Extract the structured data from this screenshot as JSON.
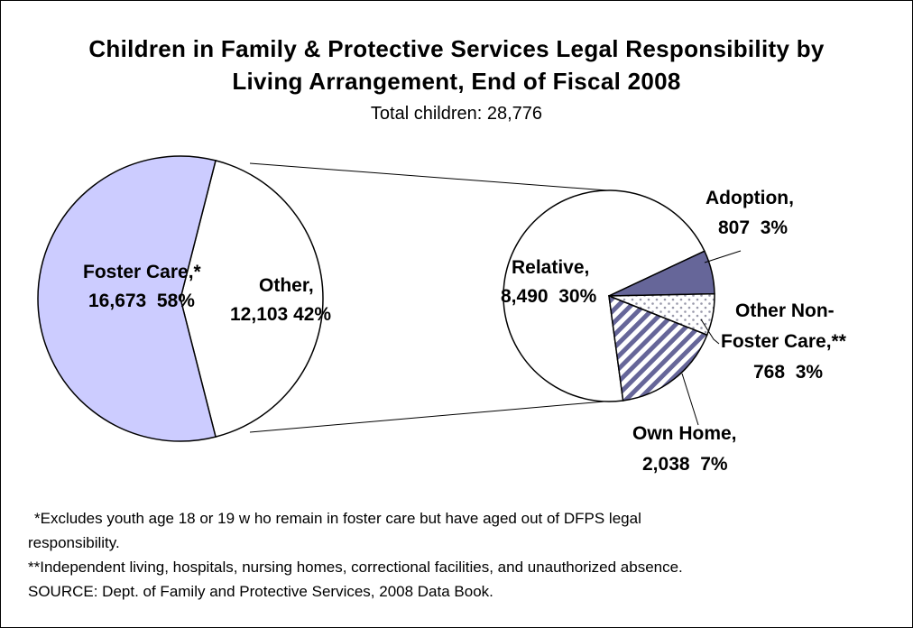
{
  "chart_data": {
    "type": "pie",
    "title_line1": "Children in Family & Protective Services Legal Responsibility by",
    "title_line2": "Living Arrangement, End of Fiscal 2008",
    "subtitle": "Total children: 28,776",
    "main_pie": {
      "slices": [
        {
          "label": "Foster Care,*",
          "value_text": "16,673  58%",
          "value": 16673,
          "percent": 58,
          "color": "#ccccff",
          "pattern": "solid"
        },
        {
          "label": "Other,",
          "value_text": "12,103 42%",
          "value": 12103,
          "percent": 42,
          "color": "#ffffff",
          "pattern": "solid"
        }
      ]
    },
    "breakout_pie": {
      "of": "Other,",
      "slices": [
        {
          "label": "Relative,",
          "value_text": "8,490  30%",
          "value": 8490,
          "percent": 30,
          "color": "#ffffff",
          "pattern": "solid"
        },
        {
          "label": "Adoption,",
          "value_text": "807  3%",
          "value": 807,
          "percent": 3,
          "color": "#666699",
          "pattern": "solid"
        },
        {
          "label_line1": "Other Non-",
          "label_line2": "Foster Care,**",
          "value_text": "768  3%",
          "value": 768,
          "percent": 3,
          "color": "#ccccdd",
          "pattern": "dots"
        },
        {
          "label": "Own Home,",
          "value_text": "2,038  7%",
          "value": 2038,
          "percent": 7,
          "color": "#666699",
          "pattern": "diagonal-stripes"
        }
      ]
    }
  },
  "footnotes": {
    "line1": "*Excludes youth age 18 or 19 w ho remain in foster care but have aged out of DFPS legal",
    "line2": "responsibility.",
    "line3": "**Independent living, hospitals, nursing homes, correctional facilities, and unauthorized absence.",
    "line4": "SOURCE: Dept. of Family and Protective Services, 2008 Data Book."
  }
}
